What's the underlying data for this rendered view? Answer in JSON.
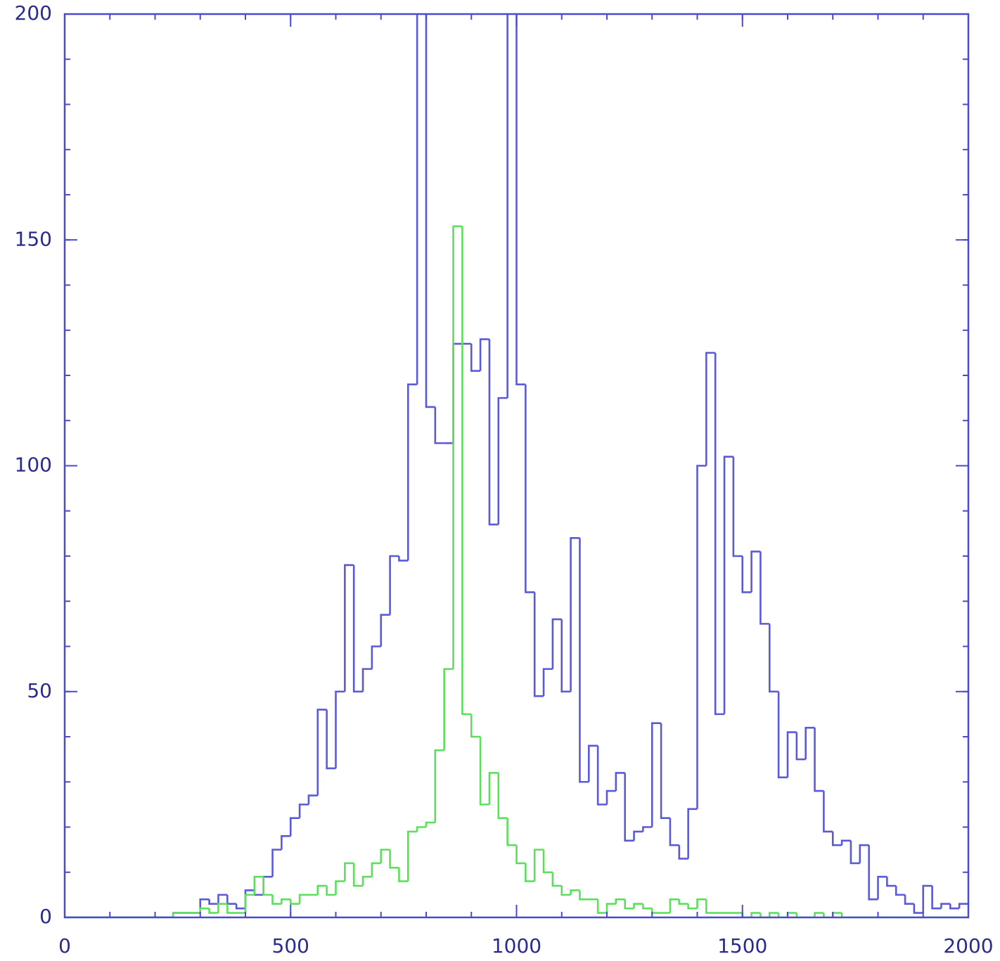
{
  "chart_data": {
    "type": "histogram",
    "bins": [
      0,
      20,
      40,
      60,
      80,
      100,
      120,
      140,
      160,
      180,
      200,
      220,
      240,
      260,
      280,
      300,
      320,
      340,
      360,
      380,
      400,
      420,
      440,
      460,
      480,
      500,
      520,
      540,
      560,
      580,
      600,
      620,
      640,
      660,
      680,
      700,
      720,
      740,
      760,
      780,
      800,
      820,
      840,
      860,
      880,
      900,
      920,
      940,
      960,
      980,
      1000,
      1020,
      1040,
      1060,
      1080,
      1100,
      1120,
      1140,
      1160,
      1180,
      1200,
      1220,
      1240,
      1260,
      1280,
      1300,
      1320,
      1340,
      1360,
      1380,
      1400,
      1420,
      1440,
      1460,
      1480,
      1500,
      1520,
      1540,
      1560,
      1580,
      1600,
      1620,
      1640,
      1660,
      1680,
      1700,
      1720,
      1740,
      1760,
      1780,
      1800,
      1820,
      1840,
      1860,
      1880,
      1900,
      1920,
      1940,
      1960,
      1980,
      2000
    ],
    "series": [
      {
        "color": "#5a5ad8",
        "values": [
          0,
          0,
          0,
          0,
          0,
          0,
          0,
          0,
          0,
          0,
          0,
          0,
          1,
          1,
          1,
          4,
          3,
          5,
          3,
          2,
          6,
          5,
          9,
          15,
          18,
          22,
          25,
          27,
          46,
          33,
          50,
          78,
          50,
          55,
          60,
          67,
          80,
          79,
          118,
          220,
          113,
          105,
          105,
          127,
          127,
          121,
          128,
          87,
          115,
          220,
          118,
          72,
          49,
          55,
          66,
          50,
          84,
          30,
          38,
          25,
          28,
          32,
          17,
          19,
          20,
          43,
          22,
          16,
          13,
          24,
          100,
          125,
          45,
          102,
          80,
          72,
          81,
          65,
          50,
          31,
          41,
          35,
          42,
          28,
          19,
          16,
          17,
          12,
          16,
          4,
          9,
          7,
          5,
          3,
          1,
          7,
          2,
          3,
          2,
          3
        ]
      },
      {
        "color": "#5ce05c",
        "values": [
          0,
          0,
          0,
          0,
          0,
          0,
          0,
          0,
          0,
          0,
          0,
          0,
          1,
          1,
          1,
          2,
          1,
          3,
          1,
          1,
          5,
          9,
          5,
          3,
          4,
          3,
          5,
          5,
          7,
          5,
          8,
          12,
          7,
          9,
          12,
          15,
          11,
          8,
          19,
          20,
          21,
          37,
          55,
          153,
          45,
          40,
          25,
          32,
          22,
          16,
          12,
          8,
          15,
          10,
          7,
          5,
          6,
          4,
          4,
          1,
          3,
          4,
          2,
          3,
          2,
          1,
          1,
          4,
          3,
          2,
          4,
          1,
          1,
          1,
          1,
          0,
          1,
          0,
          1,
          0,
          1,
          0,
          0,
          1,
          0,
          1,
          0,
          0,
          0,
          0,
          0,
          0,
          0,
          0,
          0,
          0,
          0,
          0,
          0,
          0
        ]
      }
    ],
    "xlim": [
      0,
      2000
    ],
    "ylim": [
      0,
      200
    ],
    "xticks": [
      0,
      500,
      1000,
      1500,
      2000
    ],
    "yticks": [
      0,
      50,
      100,
      150,
      200
    ],
    "minor_ticks": {
      "x": 100,
      "y": 10
    }
  }
}
